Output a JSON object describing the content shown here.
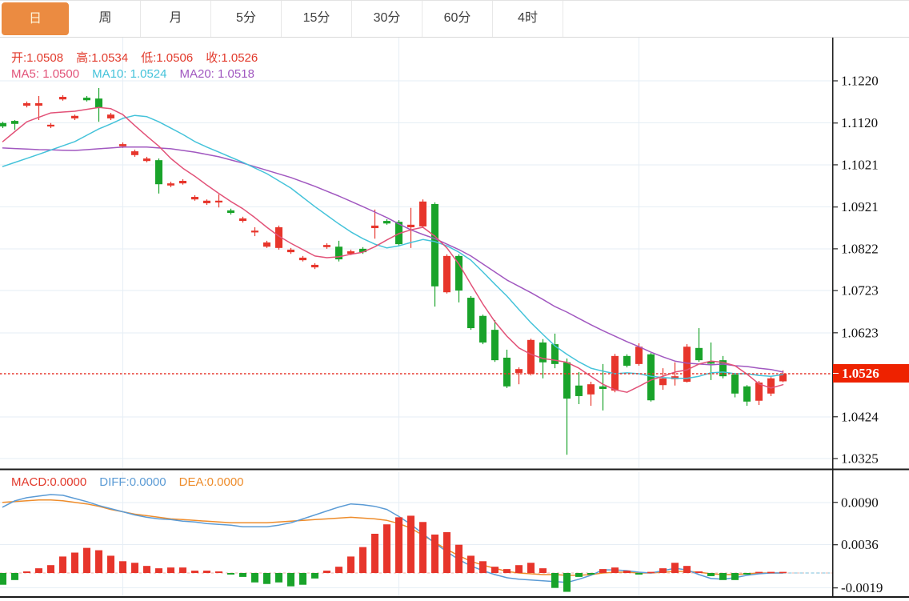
{
  "tabs": {
    "items": [
      "日",
      "周",
      "月",
      "5分",
      "15分",
      "30分",
      "60分",
      "4时"
    ],
    "active_index": 0
  },
  "overlay": {
    "ohlc": [
      {
        "label": "开:",
        "value": "1.0508"
      },
      {
        "label": "高:",
        "value": "1.0534"
      },
      {
        "label": "低:",
        "value": "1.0506"
      },
      {
        "label": "收:",
        "value": "1.0526"
      }
    ],
    "ma": [
      {
        "label": "MA5:",
        "value": "1.0500",
        "color": "#e25278"
      },
      {
        "label": "MA10:",
        "value": "1.0524",
        "color": "#45c3da"
      },
      {
        "label": "MA20:",
        "value": "1.0518",
        "color": "#a158c0"
      }
    ],
    "macd": [
      {
        "label": "MACD:",
        "value": "0.0000",
        "color": "#e23a2c"
      },
      {
        "label": "DIFF:",
        "value": "0.0000",
        "color": "#5b9bd5"
      },
      {
        "label": "DEA:",
        "value": "0.0000",
        "color": "#ee8c2b"
      }
    ]
  },
  "price_badge": {
    "text": "1.0526"
  },
  "colors": {
    "up": "#e7352b",
    "down": "#19a32a",
    "ma5": "#e25278",
    "ma10": "#45c3da",
    "ma20": "#a158c0",
    "diff": "#5b9bd5",
    "dea": "#ee8c2b",
    "grid": "#e6eef5",
    "axis_text": "#111111",
    "separator": "#1a1a1a",
    "badge_bg": "#ee2200",
    "tab_active_bg": "#eb8b41",
    "zero_dash": "#f0b1a7",
    "diff_ext_dash": "#a5d5e8",
    "ohlc_text": "#e23a2c"
  },
  "chart_data": {
    "type": "candlestick+macd",
    "main": {
      "yticks": [
        1.122,
        1.112,
        1.1021,
        1.0921,
        1.0822,
        1.0723,
        1.0623,
        1.0424,
        1.0325
      ],
      "last_price": 1.0526,
      "grid_on": true,
      "candles": [
        [
          1.112,
          1.1123,
          1.1108,
          1.1112
        ],
        [
          1.1125,
          1.1127,
          1.1104,
          1.1118
        ],
        [
          1.1161,
          1.1171,
          1.1157,
          1.1167
        ],
        [
          1.1161,
          1.1184,
          1.1127,
          1.1167
        ],
        [
          1.1112,
          1.112,
          1.1108,
          1.1116
        ],
        [
          1.1176,
          1.1186,
          1.1173,
          1.1182
        ],
        [
          1.1131,
          1.114,
          1.1127,
          1.1137
        ],
        [
          1.118,
          1.1184,
          1.1171,
          1.1174
        ],
        [
          1.1178,
          1.1203,
          1.1123,
          1.1156
        ],
        [
          1.1131,
          1.1144,
          1.1127,
          1.114
        ],
        [
          1.1065,
          1.1074,
          1.1061,
          1.107
        ],
        [
          1.1044,
          1.1057,
          1.104,
          1.1053
        ],
        [
          1.103,
          1.104,
          1.1027,
          1.1036
        ],
        [
          1.1032,
          1.1036,
          1.0953,
          1.0975
        ],
        [
          1.0972,
          1.0981,
          1.0968,
          1.0977
        ],
        [
          1.0977,
          1.0987,
          1.0974,
          1.0983
        ],
        [
          1.0939,
          1.0949,
          1.0936,
          1.0945
        ],
        [
          1.093,
          1.0939,
          1.0926,
          1.0936
        ],
        [
          1.0932,
          1.0951,
          1.092,
          1.0936
        ],
        [
          1.0913,
          1.0917,
          1.0903,
          1.0907
        ],
        [
          1.0888,
          1.0898,
          1.0884,
          1.0894
        ],
        [
          1.0862,
          1.0873,
          1.0852,
          1.0865
        ],
        [
          1.0827,
          1.0841,
          1.0824,
          1.0837
        ],
        [
          1.0824,
          1.0877,
          1.082,
          1.0873
        ],
        [
          1.0814,
          1.0824,
          1.081,
          1.082
        ],
        [
          1.0795,
          1.0805,
          1.0792,
          1.0801
        ],
        [
          1.0778,
          1.0788,
          1.0774,
          1.0784
        ],
        [
          1.0826,
          1.0835,
          1.0822,
          1.0831
        ],
        [
          1.0827,
          1.0841,
          1.0792,
          1.0797
        ],
        [
          1.081,
          1.082,
          1.0807,
          1.0816
        ],
        [
          1.0822,
          1.0826,
          1.081,
          1.0814
        ],
        [
          1.0871,
          1.0915,
          1.0846,
          1.0877
        ],
        [
          1.0888,
          1.0892,
          1.0879,
          1.0882
        ],
        [
          1.0886,
          1.089,
          1.0829,
          1.0833
        ],
        [
          1.0873,
          1.0919,
          1.0824,
          1.0879
        ],
        [
          1.0875,
          1.0939,
          1.0871,
          1.0934
        ],
        [
          1.0928,
          1.0932,
          1.0685,
          1.0733
        ],
        [
          1.0719,
          1.0809,
          1.0716,
          1.0805
        ],
        [
          1.0805,
          1.0809,
          1.0695,
          1.0723
        ],
        [
          1.0706,
          1.071,
          1.063,
          1.0634
        ],
        [
          1.0663,
          1.0666,
          1.0596,
          1.06
        ],
        [
          1.063,
          1.0653,
          1.0554,
          1.0558
        ],
        [
          1.0564,
          1.0583,
          1.0492,
          1.0496
        ],
        [
          1.0528,
          1.0541,
          1.0501,
          1.0537
        ],
        [
          1.0526,
          1.0609,
          1.0522,
          1.0606
        ],
        [
          1.06,
          1.0608,
          1.0515,
          1.0553
        ],
        [
          1.0596,
          1.0621,
          1.0539,
          1.0549
        ],
        [
          1.0553,
          1.0562,
          1.0334,
          1.0467
        ],
        [
          1.0498,
          1.053,
          1.0454,
          1.0473
        ],
        [
          1.0477,
          1.0507,
          1.045,
          1.0501
        ],
        [
          1.0496,
          1.0549,
          1.0439,
          1.049
        ],
        [
          1.0486,
          1.0573,
          1.0482,
          1.0568
        ],
        [
          1.0568,
          1.0572,
          1.0541,
          1.0545
        ],
        [
          1.0549,
          1.0598,
          1.0545,
          1.059
        ],
        [
          1.0572,
          1.0575,
          1.046,
          1.0463
        ],
        [
          1.0499,
          1.0539,
          1.0488,
          1.0515
        ],
        [
          1.0513,
          1.0553,
          1.0498,
          1.052
        ],
        [
          1.0507,
          1.0596,
          1.0505,
          1.059
        ],
        [
          1.0587,
          1.0634,
          1.0554,
          1.0558
        ],
        [
          1.0554,
          1.06,
          1.0511,
          1.0551
        ],
        [
          1.0558,
          1.0568,
          1.0515,
          1.052
        ],
        [
          1.0524,
          1.0528,
          1.047,
          1.0479
        ],
        [
          1.0496,
          1.0499,
          1.045,
          1.046
        ],
        [
          1.0462,
          1.0509,
          1.0452,
          1.0505
        ],
        [
          1.0479,
          1.0518,
          1.0473,
          1.0515
        ],
        [
          1.0508,
          1.0534,
          1.0506,
          1.0526
        ]
      ],
      "ma5_anchors": [
        [
          1,
          1.1076
        ],
        [
          3,
          1.1123
        ],
        [
          5,
          1.1144
        ],
        [
          7,
          1.1148
        ],
        [
          9,
          1.1157
        ],
        [
          10,
          1.1154
        ],
        [
          11,
          1.114
        ],
        [
          12,
          1.1114
        ],
        [
          13,
          1.1089
        ],
        [
          14,
          1.1065
        ],
        [
          15,
          1.1036
        ],
        [
          16,
          1.1013
        ],
        [
          17,
          1.0994
        ],
        [
          18,
          1.0973
        ],
        [
          19,
          1.0953
        ],
        [
          20,
          1.0934
        ],
        [
          21,
          1.0917
        ],
        [
          22,
          1.0896
        ],
        [
          23,
          1.0873
        ],
        [
          24,
          1.0852
        ],
        [
          25,
          1.0835
        ],
        [
          26,
          1.082
        ],
        [
          27,
          1.0805
        ],
        [
          28,
          1.0801
        ],
        [
          29,
          1.0803
        ],
        [
          30,
          1.0809
        ],
        [
          31,
          1.0814
        ],
        [
          32,
          1.0827
        ],
        [
          33,
          1.0843
        ],
        [
          34,
          1.0858
        ],
        [
          35,
          1.0867
        ],
        [
          36,
          1.0873
        ],
        [
          37,
          1.0852
        ],
        [
          38,
          1.0824
        ],
        [
          39,
          1.0786
        ],
        [
          40,
          1.0738
        ],
        [
          41,
          1.0691
        ],
        [
          42,
          1.0649
        ],
        [
          43,
          1.0615
        ],
        [
          44,
          1.0587
        ],
        [
          45,
          1.0572
        ],
        [
          46,
          1.0562
        ],
        [
          47,
          1.0558
        ],
        [
          48,
          1.0553
        ],
        [
          49,
          1.0539
        ],
        [
          50,
          1.052
        ],
        [
          51,
          1.0501
        ],
        [
          52,
          1.0488
        ],
        [
          53,
          1.0482
        ],
        [
          54,
          1.0496
        ],
        [
          55,
          1.0511
        ],
        [
          56,
          1.052
        ],
        [
          57,
          1.053
        ],
        [
          58,
          1.0535
        ],
        [
          59,
          1.0549
        ],
        [
          60,
          1.0556
        ],
        [
          61,
          1.0553
        ],
        [
          62,
          1.0545
        ],
        [
          63,
          1.0525
        ],
        [
          64,
          1.0502
        ],
        [
          65,
          1.0492
        ],
        [
          66,
          1.05
        ]
      ],
      "ma10_anchors": [
        [
          1,
          1.1017
        ],
        [
          4,
          1.1046
        ],
        [
          7,
          1.1076
        ],
        [
          9,
          1.1106
        ],
        [
          10,
          1.1118
        ],
        [
          11,
          1.1131
        ],
        [
          12,
          1.1138
        ],
        [
          13,
          1.1135
        ],
        [
          14,
          1.1123
        ],
        [
          15,
          1.1108
        ],
        [
          16,
          1.1093
        ],
        [
          17,
          1.1076
        ],
        [
          18,
          1.1063
        ],
        [
          19,
          1.1051
        ],
        [
          21,
          1.1027
        ],
        [
          23,
          1.1
        ],
        [
          25,
          1.0966
        ],
        [
          27,
          1.0922
        ],
        [
          29,
          1.0881
        ],
        [
          30,
          1.0862
        ],
        [
          31,
          1.0846
        ],
        [
          32,
          1.0833
        ],
        [
          33,
          1.0824
        ],
        [
          34,
          1.0829
        ],
        [
          35,
          1.0837
        ],
        [
          36,
          1.0844
        ],
        [
          37,
          1.0839
        ],
        [
          38,
          1.0829
        ],
        [
          39,
          1.0814
        ],
        [
          40,
          1.0795
        ],
        [
          41,
          1.0767
        ],
        [
          42,
          1.0738
        ],
        [
          43,
          1.071
        ],
        [
          44,
          1.0678
        ],
        [
          45,
          1.0647
        ],
        [
          46,
          1.0619
        ],
        [
          47,
          1.0592
        ],
        [
          48,
          1.0572
        ],
        [
          49,
          1.0554
        ],
        [
          50,
          1.0539
        ],
        [
          51,
          1.0532
        ],
        [
          52,
          1.0526
        ],
        [
          53,
          1.0528
        ],
        [
          54,
          1.0526
        ],
        [
          55,
          1.052
        ],
        [
          56,
          1.0517
        ],
        [
          57,
          1.0515
        ],
        [
          58,
          1.0515
        ],
        [
          59,
          1.052
        ],
        [
          60,
          1.0528
        ],
        [
          61,
          1.053
        ],
        [
          62,
          1.0526
        ],
        [
          63,
          1.0526
        ],
        [
          64,
          1.0522
        ],
        [
          65,
          1.052
        ],
        [
          66,
          1.0524
        ]
      ],
      "ma20_anchors": [
        [
          1,
          1.1061
        ],
        [
          4,
          1.1057
        ],
        [
          7,
          1.1055
        ],
        [
          9,
          1.1059
        ],
        [
          11,
          1.1063
        ],
        [
          13,
          1.1063
        ],
        [
          15,
          1.1059
        ],
        [
          17,
          1.1051
        ],
        [
          19,
          1.104
        ],
        [
          21,
          1.1025
        ],
        [
          23,
          1.1008
        ],
        [
          25,
          1.0991
        ],
        [
          27,
          1.097
        ],
        [
          29,
          1.0947
        ],
        [
          31,
          1.0922
        ],
        [
          32,
          1.0909
        ],
        [
          33,
          1.0896
        ],
        [
          34,
          1.0881
        ],
        [
          35,
          1.0867
        ],
        [
          36,
          1.0856
        ],
        [
          37,
          1.0846
        ],
        [
          38,
          1.0833
        ],
        [
          39,
          1.082
        ],
        [
          40,
          1.0805
        ],
        [
          41,
          1.0786
        ],
        [
          42,
          1.0767
        ],
        [
          43,
          1.0748
        ],
        [
          44,
          1.0733
        ],
        [
          45,
          1.0718
        ],
        [
          46,
          1.0702
        ],
        [
          47,
          1.0685
        ],
        [
          48,
          1.0672
        ],
        [
          49,
          1.0657
        ],
        [
          50,
          1.0642
        ],
        [
          51,
          1.0628
        ],
        [
          52,
          1.0615
        ],
        [
          53,
          1.0602
        ],
        [
          54,
          1.059
        ],
        [
          55,
          1.0577
        ],
        [
          56,
          1.0566
        ],
        [
          57,
          1.0556
        ],
        [
          58,
          1.0551
        ],
        [
          59,
          1.0549
        ],
        [
          60,
          1.0547
        ],
        [
          61,
          1.0549
        ],
        [
          62,
          1.0545
        ],
        [
          63,
          1.0543
        ],
        [
          64,
          1.0539
        ],
        [
          65,
          1.0536
        ],
        [
          66,
          1.053
        ]
      ]
    },
    "macd": {
      "yticks": [
        0.009,
        0.0036,
        -0.0019
      ],
      "hist": [
        -0.0015,
        -0.0009,
        0.0002,
        0.0006,
        0.001,
        0.0021,
        0.0026,
        0.0032,
        0.0029,
        0.0022,
        0.0015,
        0.0013,
        0.0009,
        0.0006,
        0.0007,
        0.0007,
        0.0003,
        0.0003,
        0.0002,
        -0.0002,
        -0.0005,
        -0.0012,
        -0.0014,
        -0.0012,
        -0.0017,
        -0.0015,
        -0.0007,
        0.0003,
        0.0008,
        0.0021,
        0.0033,
        0.005,
        0.0062,
        0.0071,
        0.0073,
        0.0065,
        0.0049,
        0.0052,
        0.0036,
        0.0022,
        0.0015,
        0.0008,
        0.0005,
        0.001,
        0.0013,
        0.0006,
        -0.0019,
        -0.0024,
        -0.0005,
        -0.0002,
        0.0005,
        0.0007,
        0.0003,
        -0.0002,
        0.0,
        0.0006,
        0.0013,
        0.0009,
        0.0002,
        -0.0004,
        -0.0009,
        -0.0009,
        -0.0002,
        0.0,
        0.0,
        0.0
      ],
      "diff": [
        0.0084,
        0.0092,
        0.0096,
        0.0098,
        0.01,
        0.0099,
        0.0095,
        0.0091,
        0.0086,
        0.0082,
        0.0078,
        0.0074,
        0.0071,
        0.0069,
        0.0068,
        0.0066,
        0.0065,
        0.0063,
        0.0062,
        0.0061,
        0.0059,
        0.0059,
        0.0059,
        0.0061,
        0.0064,
        0.0069,
        0.0074,
        0.0079,
        0.0084,
        0.0088,
        0.0087,
        0.0085,
        0.0081,
        0.0072,
        0.0062,
        0.005,
        0.0038,
        0.0027,
        0.0017,
        0.0009,
        0.0003,
        -0.0002,
        -0.0006,
        -0.0008,
        -0.0009,
        -0.001,
        -0.0011,
        -0.0012,
        -0.0008,
        -0.0003,
        0.0004,
        0.0004,
        0.0003,
        0.0001,
        0.0,
        0.0003,
        0.0006,
        0.0004,
        -0.0002,
        -0.0007,
        -0.0008,
        -0.0006,
        -0.0003,
        -0.0001,
        0.0,
        0.0
      ],
      "dea": [
        0.009,
        0.0091,
        0.0092,
        0.0093,
        0.0093,
        0.0092,
        0.009,
        0.0088,
        0.0085,
        0.0081,
        0.0078,
        0.0075,
        0.0073,
        0.0071,
        0.0069,
        0.0068,
        0.0067,
        0.0066,
        0.0065,
        0.0064,
        0.0064,
        0.0064,
        0.0064,
        0.0065,
        0.0066,
        0.0067,
        0.0068,
        0.0069,
        0.007,
        0.0071,
        0.007,
        0.0069,
        0.0067,
        0.0063,
        0.0057,
        0.0048,
        0.0039,
        0.003,
        0.0022,
        0.0015,
        0.001,
        0.0006,
        0.0002,
        0.0,
        -0.0001,
        -0.0002,
        -0.0002,
        -0.0003,
        -0.0003,
        -0.0002,
        0.0,
        0.0001,
        0.0001,
        0.0,
        0.0,
        0.0001,
        0.0002,
        0.0002,
        0.0001,
        -0.0001,
        -0.0002,
        -0.0002,
        -0.0001,
        0.0,
        0.0,
        0.0
      ]
    }
  }
}
